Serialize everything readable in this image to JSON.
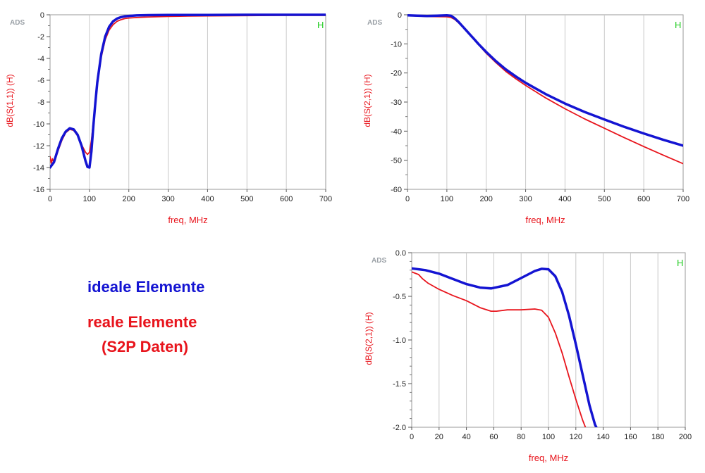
{
  "legend": {
    "ideal": "ideale Elemente",
    "real_line1": "reale Elemente",
    "real_line2": "(S2P Daten)"
  },
  "colors": {
    "ideal": "#1414d2",
    "real": "#e8141c",
    "axis_label": "#e8141c",
    "h_marker": "#22cc22",
    "grid": "#c8c8c8",
    "ads": "#9aa0a6"
  },
  "chart_data": [
    {
      "type": "line",
      "logo": "ADS",
      "marker": "H",
      "xlabel": "freq, MHz",
      "ylabel": "dB(S(1,1))  (H)",
      "xlim": [
        0,
        700
      ],
      "ylim": [
        -16,
        0
      ],
      "xticks": [
        "0",
        "100",
        "200",
        "300",
        "400",
        "500",
        "600",
        "700"
      ],
      "yticks": [
        "0",
        "-2",
        "-4",
        "-6",
        "-8",
        "-10",
        "-12",
        "-14",
        "-16"
      ],
      "series": [
        {
          "key": "ideal",
          "x": [
            0,
            10,
            20,
            30,
            40,
            50,
            60,
            70,
            80,
            90,
            95,
            100,
            105,
            110,
            115,
            120,
            130,
            140,
            150,
            160,
            170,
            180,
            190,
            200,
            220,
            250,
            300,
            350,
            400,
            500,
            600,
            700
          ],
          "y": [
            -14,
            -13.5,
            -12.3,
            -11.3,
            -10.7,
            -10.4,
            -10.5,
            -11,
            -12,
            -13.4,
            -13.95,
            -14,
            -12.5,
            -10.2,
            -8.1,
            -6.2,
            -3.6,
            -2,
            -1.1,
            -0.6,
            -0.35,
            -0.22,
            -0.14,
            -0.1,
            -0.06,
            -0.03,
            -0.02,
            -0.01,
            -0.01,
            0,
            0,
            0
          ]
        },
        {
          "key": "real",
          "x": [
            0,
            3,
            6,
            10,
            20,
            30,
            40,
            50,
            60,
            70,
            80,
            90,
            95,
            100,
            105,
            110,
            115,
            120,
            130,
            140,
            150,
            160,
            170,
            180,
            190,
            200,
            220,
            250,
            300,
            350,
            400,
            500,
            600,
            700
          ],
          "y": [
            -13,
            -13.6,
            -13.2,
            -13.6,
            -12.5,
            -11.5,
            -10.8,
            -10.5,
            -10.6,
            -11.1,
            -11.9,
            -12.6,
            -12.8,
            -12.6,
            -11.5,
            -9.8,
            -8,
            -6.4,
            -3.9,
            -2.3,
            -1.4,
            -0.9,
            -0.6,
            -0.45,
            -0.35,
            -0.3,
            -0.25,
            -0.2,
            -0.15,
            -0.12,
            -0.1,
            -0.08,
            -0.06,
            -0.05
          ]
        }
      ]
    },
    {
      "type": "line",
      "logo": "ADS",
      "marker": "H",
      "xlabel": "freq, MHz",
      "ylabel": "dB(S(2,1))  (H)",
      "xlim": [
        0,
        700
      ],
      "ylim": [
        -60,
        0
      ],
      "xticks": [
        "0",
        "100",
        "200",
        "300",
        "400",
        "500",
        "600",
        "700"
      ],
      "yticks": [
        "0",
        "-10",
        "-20",
        "-30",
        "-40",
        "-50",
        "-60"
      ],
      "series": [
        {
          "key": "ideal",
          "x": [
            0,
            50,
            100,
            110,
            120,
            130,
            140,
            150,
            160,
            170,
            180,
            200,
            225,
            250,
            275,
            300,
            350,
            400,
            450,
            500,
            550,
            600,
            650,
            700
          ],
          "y": [
            -0.2,
            -0.4,
            -0.2,
            -0.3,
            -1.2,
            -2.5,
            -4,
            -5.5,
            -7,
            -8.5,
            -10,
            -12.8,
            -16,
            -18.8,
            -21.2,
            -23.4,
            -27.2,
            -30.5,
            -33.4,
            -36,
            -38.5,
            -40.8,
            -43,
            -45
          ]
        },
        {
          "key": "real",
          "x": [
            0,
            50,
            100,
            110,
            120,
            130,
            140,
            150,
            160,
            170,
            180,
            200,
            225,
            250,
            275,
            300,
            350,
            400,
            450,
            500,
            550,
            600,
            650,
            700
          ],
          "y": [
            -0.3,
            -0.6,
            -0.7,
            -0.9,
            -1.6,
            -2.8,
            -4.2,
            -5.7,
            -7.2,
            -8.7,
            -10.2,
            -13.2,
            -16.5,
            -19.5,
            -22,
            -24.3,
            -28.5,
            -32.3,
            -35.8,
            -39,
            -42.2,
            -45.3,
            -48.3,
            -51.2
          ]
        }
      ]
    },
    {
      "type": "line",
      "logo": "ADS",
      "marker": "H",
      "xlabel": "freq, MHz",
      "ylabel": "dB(S(2,1))  (H)",
      "xlim": [
        0,
        200
      ],
      "ylim": [
        -2.0,
        0.0
      ],
      "xticks": [
        "0",
        "20",
        "40",
        "60",
        "80",
        "100",
        "120",
        "140",
        "160",
        "180",
        "200"
      ],
      "yticks": [
        "0.0",
        "-0.5",
        "-1.0",
        "-1.5",
        "-2.0"
      ],
      "series": [
        {
          "key": "ideal",
          "x": [
            0,
            10,
            20,
            30,
            40,
            50,
            58,
            70,
            80,
            90,
            95,
            100,
            105,
            110,
            115,
            120,
            125,
            130,
            134,
            135
          ],
          "y": [
            -0.18,
            -0.2,
            -0.24,
            -0.3,
            -0.36,
            -0.4,
            -0.41,
            -0.37,
            -0.29,
            -0.21,
            -0.185,
            -0.19,
            -0.27,
            -0.45,
            -0.72,
            -1.05,
            -1.4,
            -1.75,
            -1.97,
            -2.0
          ]
        },
        {
          "key": "real",
          "x": [
            0,
            5,
            8,
            12,
            20,
            30,
            40,
            50,
            58,
            62,
            70,
            80,
            90,
            95,
            100,
            105,
            110,
            115,
            120,
            125,
            127
          ],
          "y": [
            -0.22,
            -0.25,
            -0.3,
            -0.35,
            -0.42,
            -0.49,
            -0.55,
            -0.63,
            -0.67,
            -0.67,
            -0.655,
            -0.655,
            -0.645,
            -0.66,
            -0.74,
            -0.92,
            -1.15,
            -1.42,
            -1.68,
            -1.92,
            -2.0
          ]
        }
      ]
    }
  ]
}
